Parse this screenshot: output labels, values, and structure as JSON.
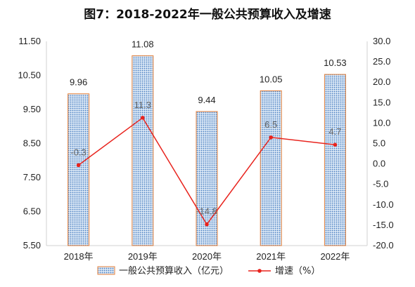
{
  "chart_data": {
    "type": "bar",
    "title": "图7：2018-2022年一般公共预算收入及增速",
    "categories": [
      "2018年",
      "2019年",
      "2020年",
      "2021年",
      "2022年"
    ],
    "series": [
      {
        "name": "一般公共预算收入（亿元）",
        "type": "bar",
        "axis": "left",
        "values": [
          9.96,
          11.08,
          9.44,
          10.05,
          10.53
        ],
        "labels": [
          "9.96",
          "11.08",
          "9.44",
          "10.05",
          "10.53"
        ],
        "color": "#e8823a",
        "fill": "#4a7fc1"
      },
      {
        "name": "增速（%）",
        "type": "line",
        "axis": "right",
        "values": [
          -0.3,
          11.3,
          -14.8,
          6.5,
          4.7
        ],
        "labels": [
          "-0.3",
          "11.3",
          "-14.8",
          "6.5",
          "4.7"
        ],
        "color": "#e8231d"
      }
    ],
    "y_left": {
      "min": 5.5,
      "max": 11.5,
      "ticks": [
        "5.50",
        "6.50",
        "7.50",
        "8.50",
        "9.50",
        "10.50",
        "11.50"
      ]
    },
    "y_right": {
      "min": -20,
      "max": 30,
      "ticks": [
        "-20.0",
        "-15.0",
        "-10.0",
        "-5.0",
        "0.0",
        "5.0",
        "10.0",
        "15.0",
        "20.0",
        "25.0",
        "30.0"
      ]
    },
    "grid": false,
    "legend": "bottom"
  }
}
